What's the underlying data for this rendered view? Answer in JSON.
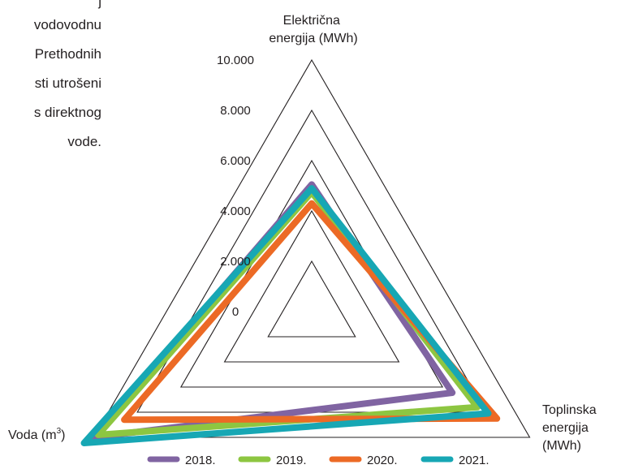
{
  "paragraph": [
    "j",
    "vodovodnu",
    "Prethodnih",
    "sti  utrošeni",
    "s direktnog",
    "vode."
  ],
  "chart_data": {
    "type": "radar",
    "title": "",
    "axes": [
      {
        "label_lines": [
          "Električna",
          "energija (MWh)"
        ]
      },
      {
        "label_lines": [
          "Toplinska",
          "energija",
          "(MWh)"
        ]
      },
      {
        "label": "Voda (m",
        "label_sup": "3",
        "label_end": ")"
      }
    ],
    "range": [
      0,
      10000
    ],
    "ticks": [
      0,
      2000,
      4000,
      6000,
      8000,
      10000
    ],
    "tick_labels": [
      "0",
      "2.000",
      "4.000",
      "6.000",
      "8.000",
      "10.000"
    ],
    "legend_position": "bottom",
    "series": [
      {
        "name": "2018.",
        "color": "#8064a2",
        "values": [
          5050,
          6450,
          10000
        ]
      },
      {
        "name": "2019.",
        "color": "#8dc641",
        "values": [
          4750,
          7600,
          9800
        ]
      },
      {
        "name": "2020.",
        "color": "#ec6a25",
        "values": [
          4300,
          8500,
          8600
        ]
      },
      {
        "name": "2021.",
        "color": "#17a7b4",
        "values": [
          4900,
          8100,
          10450
        ]
      }
    ]
  }
}
